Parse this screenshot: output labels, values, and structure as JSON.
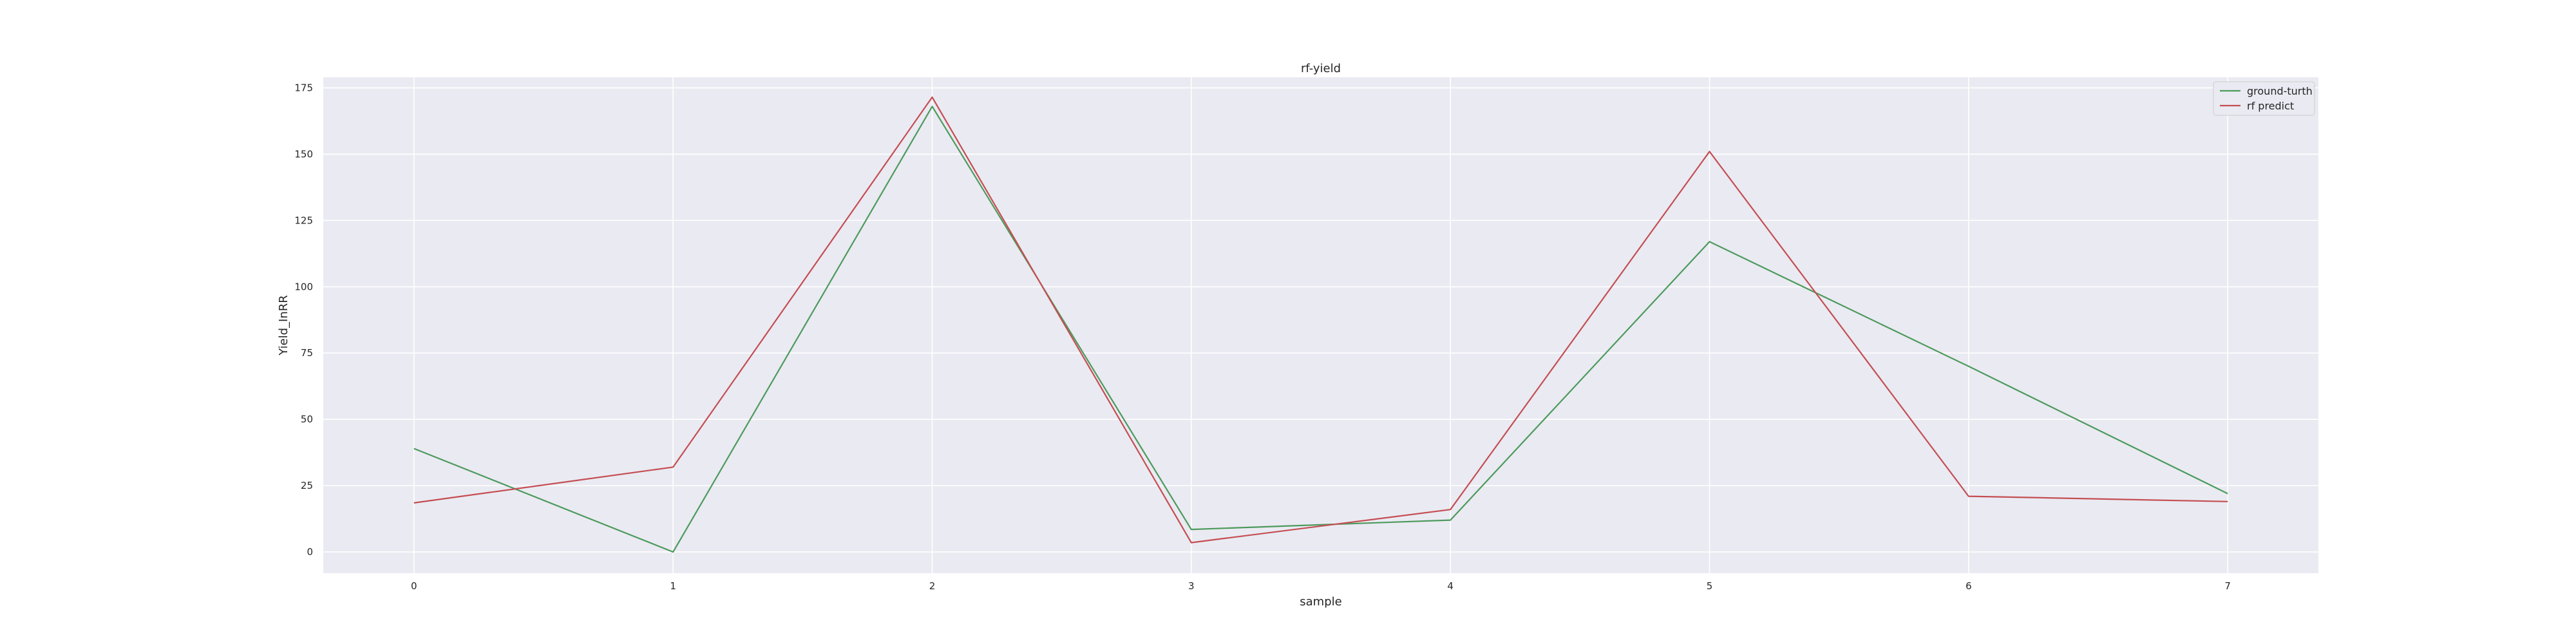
{
  "chart_data": {
    "type": "line",
    "title": "rf-yield",
    "xlabel": "sample",
    "ylabel": "Yield_InRR",
    "x": [
      0,
      1,
      2,
      3,
      4,
      5,
      6,
      7
    ],
    "xlim": [
      -0.35,
      7.35
    ],
    "ylim": [
      -8,
      179
    ],
    "yticks": [
      0,
      25,
      50,
      75,
      100,
      125,
      150,
      175
    ],
    "grid": true,
    "legend_position": "top-right",
    "series": [
      {
        "name": "ground-turth",
        "color": "#4c9a5c",
        "values": [
          39,
          0,
          168,
          8.5,
          12,
          117,
          70,
          22
        ]
      },
      {
        "name": "rf predict",
        "color": "#c44e52",
        "values": [
          18.5,
          32,
          171.5,
          3.5,
          16,
          151,
          21,
          19
        ]
      }
    ]
  }
}
